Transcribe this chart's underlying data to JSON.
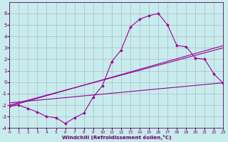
{
  "title": "",
  "xlabel": "Windchill (Refroidissement éolien,°C)",
  "background_color": "#c8ecec",
  "line_color": "#990099",
  "grid_color": "#aabbcc",
  "xlim": [
    0,
    23
  ],
  "ylim": [
    -4,
    7
  ],
  "xticks": [
    0,
    1,
    2,
    3,
    4,
    5,
    6,
    7,
    8,
    9,
    10,
    11,
    12,
    13,
    14,
    15,
    16,
    17,
    18,
    19,
    20,
    21,
    22,
    23
  ],
  "yticks": [
    -4,
    -3,
    -2,
    -1,
    0,
    1,
    2,
    3,
    4,
    5,
    6
  ],
  "series1_x": [
    0,
    1,
    2,
    3,
    4,
    5,
    6,
    7,
    8,
    9,
    10,
    11,
    12,
    13,
    14,
    15,
    16,
    17,
    18,
    19,
    20,
    21,
    22,
    23
  ],
  "series1_y": [
    -2.1,
    -2.0,
    -2.3,
    -2.6,
    -3.0,
    -3.1,
    -3.6,
    -3.1,
    -2.7,
    -1.3,
    -0.3,
    1.8,
    2.8,
    4.8,
    5.5,
    5.8,
    6.0,
    5.0,
    3.2,
    3.1,
    2.1,
    2.0,
    0.7,
    -0.1
  ],
  "line1_x": [
    0,
    23
  ],
  "line1_y": [
    -2.1,
    3.2
  ],
  "line2_x": [
    0,
    23
  ],
  "line2_y": [
    -2.0,
    3.0
  ],
  "line3_x": [
    0,
    23
  ],
  "line3_y": [
    -1.8,
    -0.05
  ]
}
